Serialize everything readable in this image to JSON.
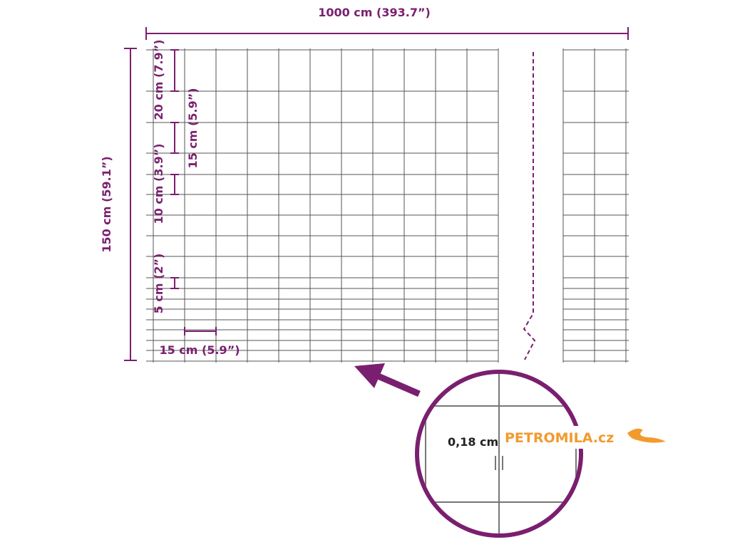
{
  "dimensions": {
    "width": "1000 cm (393.7”)",
    "height": "150 cm (59.1”)",
    "top_mesh": "20 cm (7.9”)",
    "upper_mesh": "15 cm (5.9”)",
    "middle_mesh": "10 cm (3.9”)",
    "bottom_mesh": "5 cm (2”)",
    "mesh_width": "15 cm (5.9”)"
  },
  "detail": {
    "wire": "0,18 cm"
  },
  "logo": {
    "text": "PETROMILA.cz"
  }
}
